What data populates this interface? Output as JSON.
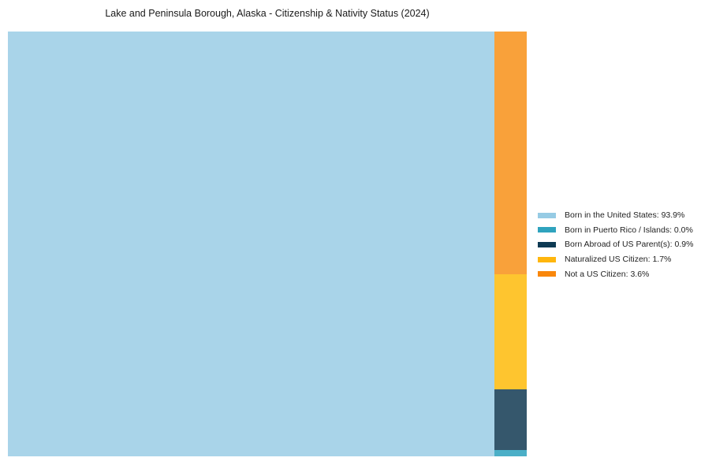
{
  "chart_data": {
    "type": "treemap",
    "title": "Lake and Peninsula Borough, Alaska - Citizenship & Nativity Status (2024)",
    "unit": "%",
    "legend_position": "right",
    "background_color": "#ffffff",
    "layout_note": "single large tile on left for first series; remaining series stacked top-to-bottom in a narrow right column in reverse order (zero-value series rendered as minimal sliver at bottom)",
    "series": [
      {
        "label": "Born in the United States",
        "value": 93.9,
        "legend_label": "Born in the United States: 93.9%",
        "color": "#96CBE4",
        "tile_color": "#A9D4E9"
      },
      {
        "label": "Born in Puerto Rico / Islands",
        "value": 0.0,
        "legend_label": "Born in Puerto Rico / Islands: 0.0%",
        "color": "#2FA3BE",
        "tile_color": "#4BAFC7"
      },
      {
        "label": "Born Abroad of US Parent(s)",
        "value": 0.9,
        "legend_label": "Born Abroad of US Parent(s): 0.9%",
        "color": "#0E3A53",
        "tile_color": "#35576C"
      },
      {
        "label": "Naturalized US Citizen",
        "value": 1.7,
        "legend_label": "Naturalized US Citizen: 1.7%",
        "color": "#FFB60D",
        "tile_color": "#FEC52F"
      },
      {
        "label": "Not a US Citizen",
        "value": 3.6,
        "legend_label": "Not a US Citizen: 3.6%",
        "color": "#F9870B",
        "tile_color": "#F9A13A"
      }
    ]
  }
}
